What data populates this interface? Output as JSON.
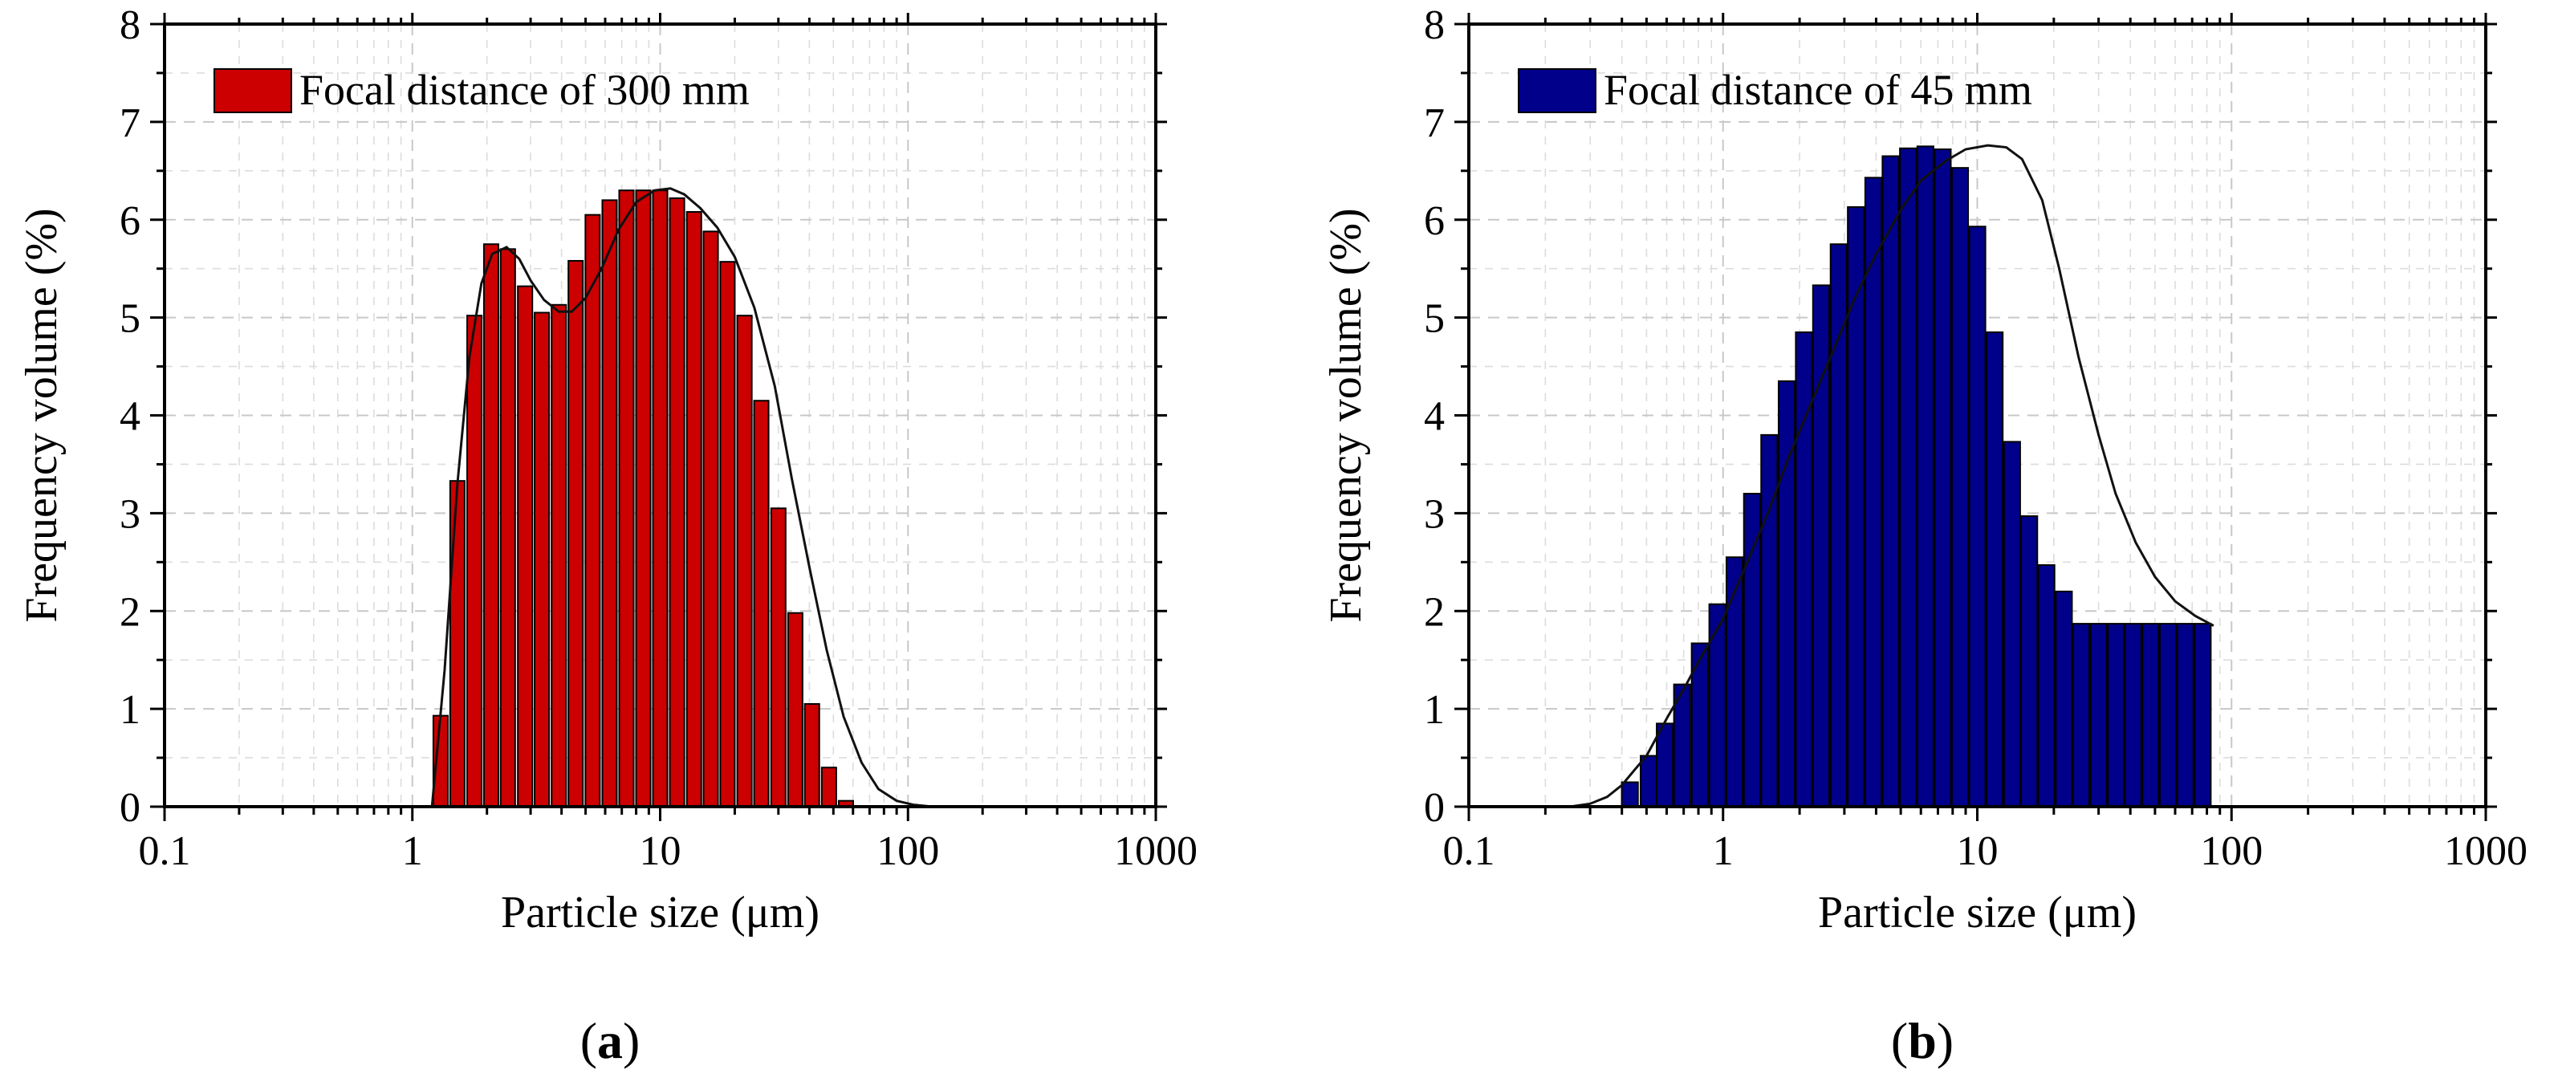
{
  "colors": {
    "panel_a_fill": "#cc0000",
    "panel_b_fill": "#00008b",
    "curve": "#111111",
    "grid": "#c8c8c8"
  },
  "chart_data": [
    {
      "type": "bar",
      "panel_label": "a",
      "legend": "Focal distance of 300 mm",
      "legend_position": "top-left",
      "xlabel": "Particle size (μm)",
      "ylabel": "Frequency volume (%)",
      "xscale": "log",
      "xlim": [
        0.1,
        1000
      ],
      "ylim": [
        0,
        8
      ],
      "xticks": [
        "0.1",
        "1",
        "10",
        "100",
        "1000"
      ],
      "yticks": [
        "0",
        "1",
        "2",
        "3",
        "4",
        "5",
        "6",
        "7",
        "8"
      ],
      "grid": true,
      "x": [
        1.3,
        1.52,
        1.78,
        2.08,
        2.43,
        2.85,
        3.33,
        3.9,
        4.56,
        5.34,
        6.25,
        7.31,
        8.55,
        10.0,
        11.7,
        13.7,
        16.0,
        18.7,
        21.9,
        25.6,
        30.0,
        35.1,
        41.0,
        48.0,
        56.2,
        65.8,
        77.0,
        90.1,
        105.4
      ],
      "values": [
        0.93,
        3.33,
        5.02,
        5.75,
        5.7,
        5.32,
        5.05,
        5.13,
        5.58,
        6.05,
        6.2,
        6.3,
        6.3,
        6.3,
        6.22,
        6.08,
        5.88,
        5.57,
        5.02,
        4.15,
        3.05,
        1.98,
        1.05,
        0.4,
        0.06,
        0,
        0,
        0,
        0
      ],
      "curve_x": [
        1.2,
        1.35,
        1.52,
        1.7,
        1.9,
        2.1,
        2.4,
        2.7,
        3.0,
        3.4,
        3.9,
        4.4,
        5.0,
        5.8,
        6.8,
        8.0,
        9.5,
        11.0,
        12.5,
        14.5,
        17.0,
        20.0,
        24.0,
        29.0,
        34.0,
        40.0,
        47.0,
        55.0,
        65.0,
        76.0,
        90.0,
        105.0,
        120.0,
        140.0,
        170.0,
        250.0
      ],
      "curve_y": [
        0.0,
        1.4,
        3.3,
        4.6,
        5.35,
        5.65,
        5.72,
        5.6,
        5.38,
        5.18,
        5.06,
        5.06,
        5.2,
        5.5,
        5.9,
        6.18,
        6.3,
        6.32,
        6.26,
        6.12,
        5.92,
        5.62,
        5.1,
        4.3,
        3.35,
        2.45,
        1.6,
        0.92,
        0.45,
        0.18,
        0.06,
        0.02,
        0.005,
        0.0,
        0.0,
        0.0
      ]
    },
    {
      "type": "bar",
      "panel_label": "b",
      "legend": "Focal distance of 45 mm",
      "legend_position": "top-left",
      "xlabel": "Particle size (μm)",
      "ylabel": "Frequency volume (%)",
      "xscale": "log",
      "xlim": [
        0.1,
        1000
      ],
      "ylim": [
        0,
        8
      ],
      "xticks": [
        "0.1",
        "1",
        "10",
        "100",
        "1000"
      ],
      "yticks": [
        "0",
        "1",
        "2",
        "3",
        "4",
        "5",
        "6",
        "7",
        "8"
      ],
      "grid": true,
      "x": [
        0.43,
        0.51,
        0.59,
        0.69,
        0.81,
        0.95,
        1.11,
        1.3,
        1.52,
        1.78,
        2.08,
        2.43,
        2.85,
        3.33,
        3.9,
        4.56,
        5.34,
        6.25,
        7.31,
        8.55,
        10.0,
        11.7,
        13.7,
        16.0,
        18.7,
        21.9,
        25.6,
        30.0,
        35.1,
        41.0,
        48.0,
        56.2,
        65.8,
        77.0
      ],
      "values": [
        0.25,
        0.52,
        0.85,
        1.25,
        1.67,
        2.07,
        2.55,
        3.2,
        3.8,
        4.35,
        4.85,
        5.33,
        5.75,
        6.13,
        6.43,
        6.65,
        6.73,
        6.75,
        6.72,
        6.53,
        5.93,
        4.85,
        3.73,
        2.97,
        2.47,
        2.2,
        1.87,
        1.87,
        1.87,
        1.87,
        1.87,
        1.87,
        1.87,
        1.87
      ],
      "curve_x": [
        0.2,
        0.25,
        0.3,
        0.35,
        0.4,
        0.45,
        0.5,
        0.6,
        0.7,
        0.8,
        1.0,
        1.2,
        1.5,
        1.8,
        2.2,
        2.7,
        3.3,
        4.0,
        5.0,
        6.0,
        7.5,
        9.0,
        11.0,
        13.0,
        15.0,
        18.0,
        21.0,
        25.0,
        30.0,
        35.0,
        42.0,
        50.0,
        60.0,
        72.0,
        85.0
      ],
      "curve_y": [
        0.0,
        0.0,
        0.03,
        0.1,
        0.22,
        0.38,
        0.52,
        0.9,
        1.2,
        1.48,
        1.92,
        2.4,
        3.0,
        3.55,
        4.1,
        4.65,
        5.2,
        5.65,
        6.1,
        6.4,
        6.6,
        6.72,
        6.76,
        6.74,
        6.62,
        6.2,
        5.5,
        4.6,
        3.8,
        3.2,
        2.7,
        2.35,
        2.1,
        1.95,
        1.85
      ]
    }
  ]
}
